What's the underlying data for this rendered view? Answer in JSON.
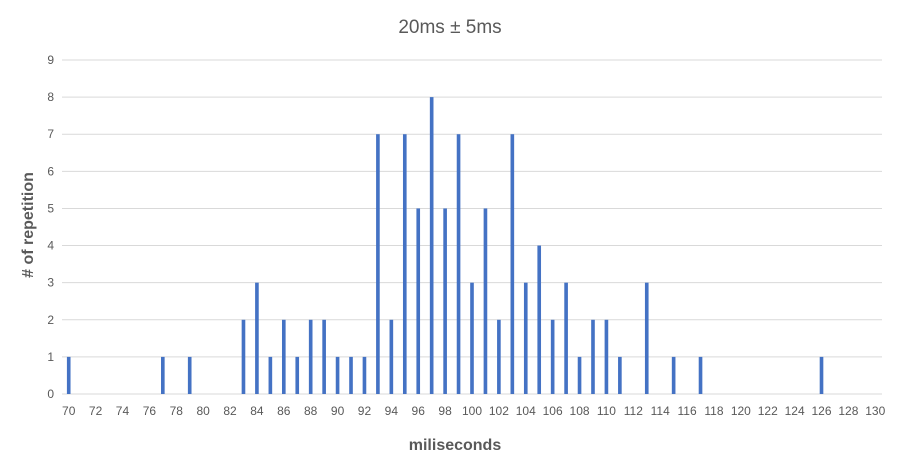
{
  "chart_data": {
    "type": "bar",
    "title": "20ms ± 5ms",
    "xlabel": "miliseconds",
    "ylabel": "# of repetition",
    "x_range": [
      70,
      130
    ],
    "ylim": [
      0,
      9
    ],
    "y_ticks": [
      "0",
      "1",
      "2",
      "3",
      "4",
      "5",
      "6",
      "7",
      "8",
      "9"
    ],
    "x_tick_labels": [
      "70",
      "72",
      "74",
      "76",
      "78",
      "80",
      "82",
      "84",
      "86",
      "88",
      "90",
      "92",
      "94",
      "96",
      "98",
      "100",
      "102",
      "104",
      "106",
      "108",
      "110",
      "112",
      "114",
      "116",
      "118",
      "120",
      "122",
      "124",
      "126",
      "128",
      "130"
    ],
    "grid": true,
    "legend": "none",
    "bar_color": "#4472c4",
    "x": [
      70,
      77,
      79,
      83,
      84,
      85,
      86,
      87,
      88,
      89,
      90,
      91,
      92,
      93,
      94,
      95,
      96,
      97,
      98,
      99,
      100,
      101,
      102,
      103,
      104,
      105,
      106,
      107,
      108,
      109,
      110,
      111,
      113,
      115,
      117,
      126
    ],
    "values": [
      1,
      1,
      1,
      2,
      3,
      1,
      2,
      1,
      2,
      2,
      1,
      1,
      1,
      7,
      2,
      7,
      5,
      8,
      5,
      7,
      3,
      5,
      2,
      7,
      3,
      4,
      2,
      3,
      1,
      2,
      2,
      1,
      3,
      1,
      1,
      1
    ]
  }
}
